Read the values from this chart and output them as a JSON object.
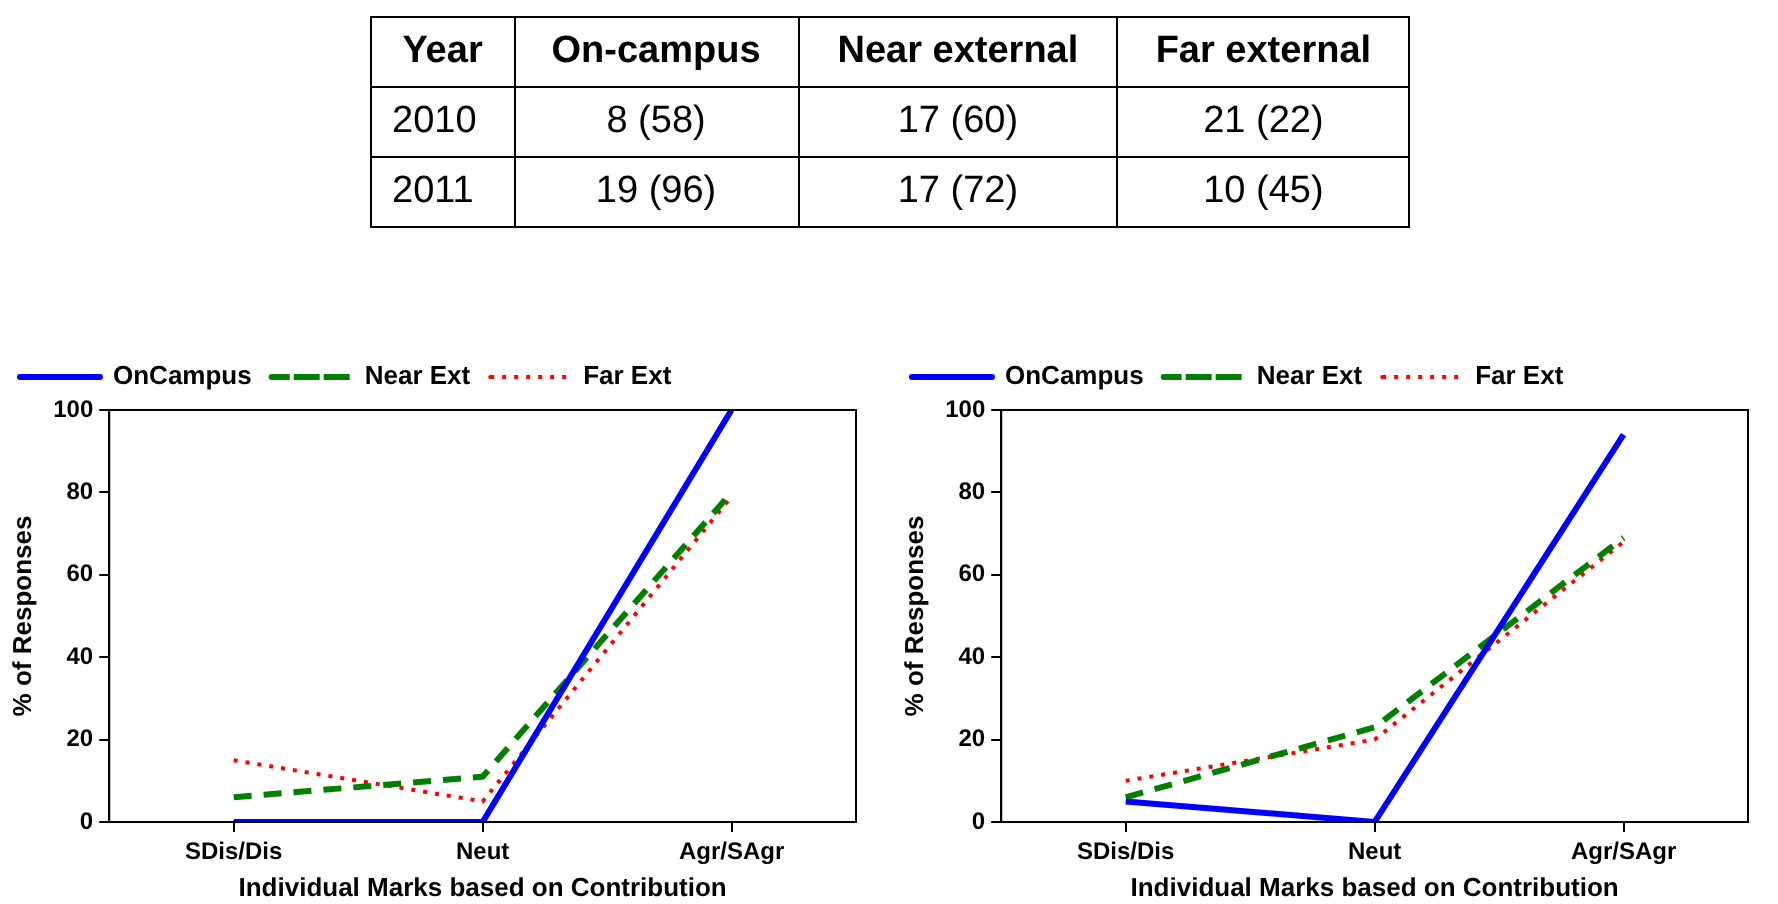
{
  "chart_data": [
    {
      "type": "other",
      "ylabel": "Year",
      "categories": [
        "On-campus",
        "Near external",
        "Far external"
      ],
      "y_categories": [
        "2010",
        "2011"
      ],
      "cell_labels": [
        [
          "8 (58)",
          "17 (60)",
          "21 (22)"
        ],
        [
          "19 (96)",
          "17 (72)",
          "10 (45)"
        ]
      ]
    },
    {
      "type": "line",
      "xlabel": "Individual Marks based on Contribution",
      "ylabel": "% of Responses",
      "categories": [
        "SDis/Dis",
        "Neut",
        "Agr/SAgr"
      ],
      "ylim": [
        0,
        100
      ],
      "yticks": [
        0,
        20,
        40,
        60,
        80,
        100
      ],
      "legend": "top left",
      "series": [
        {
          "name": "OnCampus",
          "color": "#0000ff",
          "line_style": "solid",
          "values": [
            0,
            0,
            100
          ]
        },
        {
          "name": "Near Ext",
          "color": "#008000",
          "line_style": "dashed",
          "values": [
            6,
            11,
            80
          ]
        },
        {
          "name": "Far Ext",
          "color": "#ff0000",
          "line_style": "dotted",
          "values": [
            15,
            5,
            79
          ]
        }
      ]
    },
    {
      "type": "line",
      "xlabel": "Individual Marks based on Contribution",
      "ylabel": "% of Responses",
      "categories": [
        "SDis/Dis",
        "Neut",
        "Agr/SAgr"
      ],
      "ylim": [
        0,
        100
      ],
      "yticks": [
        0,
        20,
        40,
        60,
        80,
        100
      ],
      "legend": "top left",
      "series": [
        {
          "name": "OnCampus",
          "color": "#0000ff",
          "line_style": "solid",
          "values": [
            5,
            0,
            94
          ]
        },
        {
          "name": "Near Ext",
          "color": "#008000",
          "line_style": "dashed",
          "values": [
            6,
            23,
            69
          ]
        },
        {
          "name": "Far Ext",
          "color": "#ff0000",
          "line_style": "dotted",
          "values": [
            10,
            20,
            68
          ]
        }
      ]
    }
  ]
}
